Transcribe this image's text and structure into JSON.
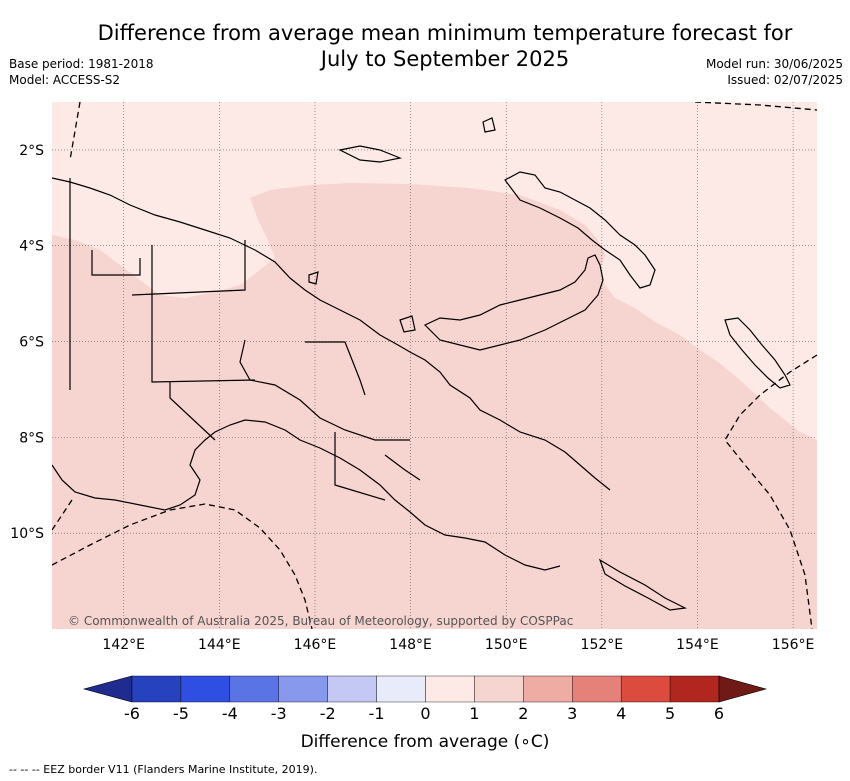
{
  "title": "Difference from average mean minimum temperature forecast for July to September 2025",
  "meta_left": {
    "base_period": "Base period: 1981-2018",
    "model": "Model: ACCESS-S2"
  },
  "meta_right": {
    "model_run": "Model run: 30/06/2025",
    "issued": "Issued: 02/07/2025"
  },
  "map": {
    "region": "Papua New Guinea",
    "lon_range": [
      140.5,
      156.5
    ],
    "lat_range": [
      -12,
      -1
    ],
    "lat_ticks": [
      {
        "value": -2,
        "label": "2°S"
      },
      {
        "value": -4,
        "label": "4°S"
      },
      {
        "value": -6,
        "label": "6°S"
      },
      {
        "value": -8,
        "label": "8°S"
      },
      {
        "value": -10,
        "label": "10°S"
      }
    ],
    "lon_ticks": [
      {
        "value": 142,
        "label": "142°E"
      },
      {
        "value": 144,
        "label": "144°E"
      },
      {
        "value": 146,
        "label": "146°E"
      },
      {
        "value": 148,
        "label": "148°E"
      },
      {
        "value": 150,
        "label": "150°E"
      },
      {
        "value": 152,
        "label": "152°E"
      },
      {
        "value": 154,
        "label": "154°E"
      },
      {
        "value": 156,
        "label": "156°E"
      }
    ],
    "gridlines": true,
    "copyright": "© Commonwealth of Australia 2025, Bureau of Meteorology, supported by COSPPac"
  },
  "colorbar": {
    "ticks": [
      "-6",
      "-5",
      "-4",
      "-3",
      "-2",
      "-1",
      "0",
      "1",
      "2",
      "3",
      "4",
      "5",
      "6"
    ],
    "colors": [
      "#1f2b8f",
      "#2642bf",
      "#2f4fe3",
      "#5a74e6",
      "#8898ec",
      "#c3c9f4",
      "#e8ebfa",
      "#fdeae7",
      "#f6d4d0",
      "#efaca4",
      "#e6817a",
      "#db4b3e",
      "#b1261f",
      "#6f1a16"
    ],
    "label": "Difference from average (∘C)"
  },
  "footnote": "-- -- -- EEZ border V11 (Flanders Marine Institute, 2019).",
  "colors": {
    "low_anomaly": "#fdeae7",
    "moderate_anomaly": "#f6d4d0",
    "coast": "#000000",
    "eez": "#000000"
  }
}
